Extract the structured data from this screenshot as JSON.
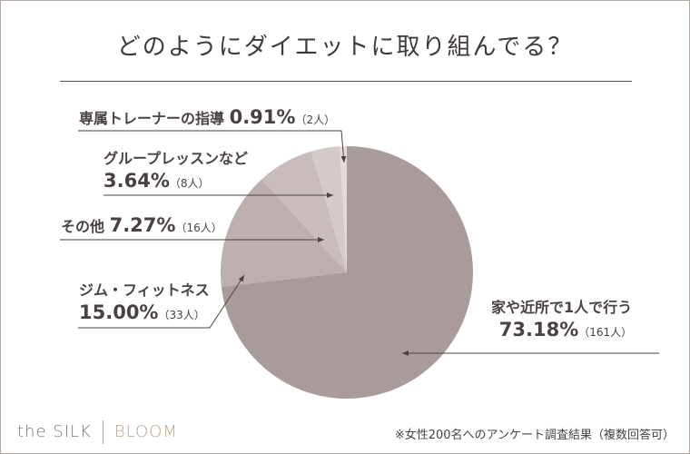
{
  "chart_data": {
    "type": "pie",
    "title": "どのようにダイエットに取り組んでる？",
    "slices": [
      {
        "label": "家や近所で1人で行う",
        "percent": 73.18,
        "count": 161,
        "pct_text": "73.18%",
        "count_text": "（161人）",
        "color": "#a99b9a"
      },
      {
        "label": "ジム・フィットネス",
        "percent": 15.0,
        "count": 33,
        "pct_text": "15.00%",
        "count_text": "（33人）",
        "color": "#bcafae"
      },
      {
        "label": "その他",
        "percent": 7.27,
        "count": 16,
        "pct_text": "7.27%",
        "count_text": "（16人）",
        "color": "#c8bdbc"
      },
      {
        "label": "グループレッスンなど",
        "percent": 3.64,
        "count": 8,
        "pct_text": "3.64%",
        "count_text": "（8人）",
        "color": "#d4cac9"
      },
      {
        "label": "専属トレーナーの指導",
        "percent": 0.91,
        "count": 2,
        "pct_text": "0.91%",
        "count_text": "（2人）",
        "color": "#e2dbda"
      }
    ]
  },
  "footer": {
    "brand_left": "the SILK",
    "brand_right": "BLOOM",
    "note": "※女性200名へのアンケート調査結果（複数回答可）"
  }
}
